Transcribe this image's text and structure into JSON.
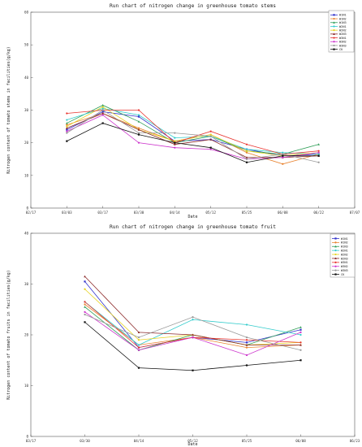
{
  "chart_data": [
    {
      "type": "line",
      "title": "Run chart of nitrogen change in greenhouse tomato stems",
      "xlabel": "Date",
      "ylabel": "Nitrogen content of tomato stems in facilities(g/kg)",
      "x_ticks": [
        "02/17",
        "03/03",
        "03/17",
        "03/30",
        "04/14",
        "05/12",
        "05/25",
        "06/08",
        "06/22",
        "07/07"
      ],
      "ylim": [
        0,
        60
      ],
      "y_ticks": [
        0,
        10,
        20,
        30,
        40,
        50,
        60
      ],
      "grid": false,
      "legend_position": "top-right",
      "x": [
        "03/03",
        "03/17",
        "03/30",
        "04/14",
        "05/12",
        "05/25",
        "06/08",
        "06/22"
      ],
      "series": [
        {
          "name": "W1N1",
          "color": "#3333cc",
          "marker": "square",
          "values": [
            24.0,
            29.5,
            28.0,
            20.5,
            21.0,
            18.0,
            16.0,
            16.5
          ]
        },
        {
          "name": "W1N2",
          "color": "#e8822e",
          "marker": "circle",
          "values": [
            25.5,
            29.0,
            24.5,
            20.5,
            22.5,
            17.0,
            13.5,
            16.5
          ]
        },
        {
          "name": "W1N3",
          "color": "#2e9e57",
          "marker": "triangle",
          "values": [
            26.0,
            31.5,
            26.5,
            20.0,
            22.0,
            17.5,
            16.5,
            19.5
          ]
        },
        {
          "name": "W2N1",
          "color": "#33cccc",
          "marker": "circle",
          "values": [
            27.0,
            30.5,
            28.5,
            21.5,
            22.0,
            18.0,
            17.0,
            16.5
          ]
        },
        {
          "name": "W2N2",
          "color": "#e6d21e",
          "marker": "circle",
          "values": [
            25.0,
            31.0,
            24.0,
            20.5,
            22.5,
            17.5,
            16.0,
            17.0
          ]
        },
        {
          "name": "W2N3",
          "color": "#8c2a2a",
          "marker": "triangle",
          "values": [
            24.5,
            29.0,
            24.0,
            19.5,
            21.0,
            15.5,
            15.5,
            16.0
          ]
        },
        {
          "name": "W3N1",
          "color": "#e8332e",
          "marker": "circle",
          "values": [
            29.0,
            30.0,
            30.0,
            20.0,
            23.5,
            19.5,
            16.5,
            17.5
          ]
        },
        {
          "name": "W3N2",
          "color": "#cc33cc",
          "marker": "circle",
          "values": [
            23.5,
            28.5,
            20.0,
            18.5,
            18.0,
            15.0,
            15.5,
            17.0
          ]
        },
        {
          "name": "W3N3",
          "color": "#999999",
          "marker": "circle",
          "values": [
            23.0,
            30.0,
            23.0,
            23.0,
            22.0,
            15.0,
            16.5,
            14.0
          ]
        },
        {
          "name": "CK",
          "color": "#111111",
          "marker": "square",
          "values": [
            20.5,
            26.0,
            22.5,
            20.0,
            18.5,
            14.0,
            16.0,
            16.0
          ]
        }
      ]
    },
    {
      "type": "line",
      "title": "Run chart of nitrogen change in greenhouse tomato fruit",
      "xlabel": "Date",
      "ylabel": "Nitrogen content of tomato fruits in facilities(g/kg)",
      "x_ticks": [
        "03/17",
        "03/30",
        "04/14",
        "05/12",
        "05/25",
        "06/08",
        "06/23"
      ],
      "ylim": [
        0,
        40
      ],
      "y_ticks": [
        0,
        10,
        20,
        30,
        40
      ],
      "grid": false,
      "legend_position": "top-right",
      "x": [
        "03/30",
        "04/14",
        "05/12",
        "05/25",
        "06/08"
      ],
      "series": [
        {
          "name": "W1N1",
          "color": "#3333cc",
          "marker": "square",
          "values": [
            30.5,
            17.5,
            19.5,
            18.5,
            21.0
          ]
        },
        {
          "name": "W1N2",
          "color": "#e8822e",
          "marker": "circle",
          "values": [
            26.0,
            18.0,
            19.5,
            17.5,
            18.0
          ]
        },
        {
          "name": "W1N3",
          "color": "#2e9e57",
          "marker": "triangle",
          "values": [
            25.5,
            17.0,
            20.0,
            18.0,
            21.5
          ]
        },
        {
          "name": "W2N1",
          "color": "#33cccc",
          "marker": "circle",
          "values": [
            26.5,
            18.0,
            23.0,
            22.0,
            20.0
          ]
        },
        {
          "name": "W2N2",
          "color": "#e6d21e",
          "marker": "circle",
          "values": [
            29.0,
            19.0,
            20.0,
            18.0,
            18.5
          ]
        },
        {
          "name": "W2N3",
          "color": "#8c2a2a",
          "marker": "triangle",
          "values": [
            31.5,
            20.5,
            20.0,
            18.0,
            18.0
          ]
        },
        {
          "name": "W3N1",
          "color": "#e8332e",
          "marker": "circle",
          "values": [
            26.5,
            17.5,
            19.5,
            19.0,
            18.5
          ]
        },
        {
          "name": "W3N2",
          "color": "#cc33cc",
          "marker": "circle",
          "values": [
            24.5,
            17.0,
            19.5,
            16.0,
            20.5
          ]
        },
        {
          "name": "W3N3",
          "color": "#999999",
          "marker": "circle",
          "values": [
            24.0,
            19.5,
            23.5,
            19.5,
            17.0
          ]
        },
        {
          "name": "CK",
          "color": "#111111",
          "marker": "square",
          "values": [
            22.5,
            13.5,
            13.0,
            14.0,
            15.0
          ]
        }
      ]
    }
  ]
}
